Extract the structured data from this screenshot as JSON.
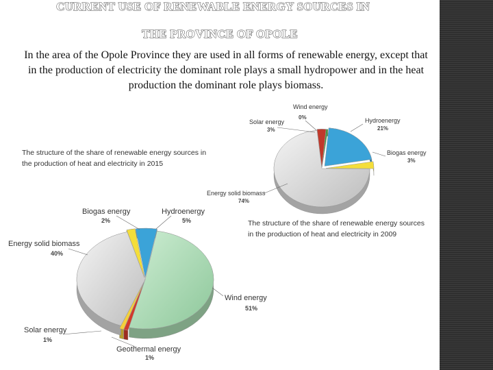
{
  "title": {
    "line1": "CURRENT USE OF RENEWABLE ENERGY SOURCES IN",
    "line2": "THE PROVINCE OF OPOLE"
  },
  "intro": "In the area of the Opole Province they are used in all forms of renewable energy, except that in the production of electricity the dominant role plays a small hydropower and in the heat production the dominant role plays biomass.",
  "chart_data": [
    {
      "type": "pie",
      "title_lines": [
        "The structure of the share of renewable energy sources",
        "in the production of heat and electricity in 2009"
      ],
      "slices": [
        {
          "name": "Hydroenergy",
          "value": 21,
          "label": "21%",
          "color": "#3ba3d8"
        },
        {
          "name": "Biogas energy",
          "value": 3,
          "label": "3%",
          "color": "#f4de3a"
        },
        {
          "name": "Energy solid biomass",
          "value": 74,
          "label": "74%",
          "color": "#d9d9d9"
        },
        {
          "name": "Solar energy",
          "value": 3,
          "label": "3%",
          "color": "#c0392b"
        },
        {
          "name": "Wind energy",
          "value": 0,
          "label": "0%",
          "color": "#3c9a3c"
        }
      ]
    },
    {
      "type": "pie",
      "title_lines": [
        "The structure of the share of renewable energy sources in",
        "the production of heat and electricity in 2015"
      ],
      "slices": [
        {
          "name": "Hydroenergy",
          "value": 5,
          "label": "5%",
          "color": "#3ba3d8"
        },
        {
          "name": "Wind energy",
          "value": 51,
          "label": "51%",
          "color": "#a8d8b0"
        },
        {
          "name": "Geothermal energy",
          "value": 1,
          "label": "1%",
          "color": "#d23a2a"
        },
        {
          "name": "Solar energy",
          "value": 1,
          "label": "1%",
          "color": "#f4d03a"
        },
        {
          "name": "Energy solid biomass",
          "value": 40,
          "label": "40%",
          "color": "#d9d9d9"
        },
        {
          "name": "Biogas energy",
          "value": 2,
          "label": "2%",
          "color": "#f4de3a"
        }
      ]
    }
  ]
}
